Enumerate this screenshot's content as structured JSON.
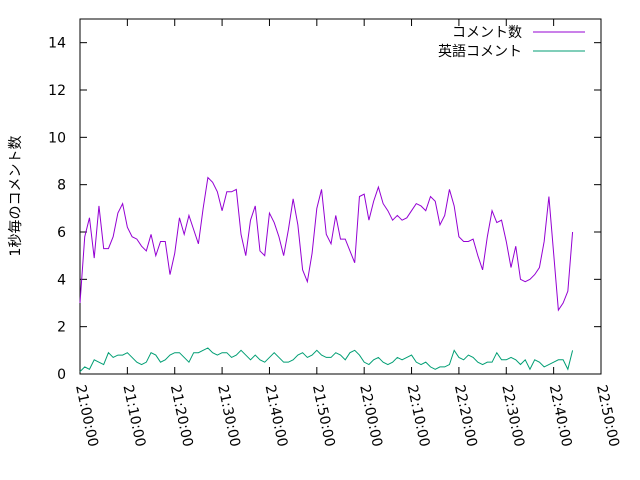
{
  "chart_data": {
    "type": "line",
    "y_label": "1秒毎のコメント数",
    "x": [
      "21:00:00",
      "21:01:00",
      "21:02:00",
      "21:03:00",
      "21:04:00",
      "21:05:00",
      "21:06:00",
      "21:07:00",
      "21:08:00",
      "21:09:00",
      "21:10:00",
      "21:11:00",
      "21:12:00",
      "21:13:00",
      "21:14:00",
      "21:15:00",
      "21:16:00",
      "21:17:00",
      "21:18:00",
      "21:19:00",
      "21:20:00",
      "21:21:00",
      "21:22:00",
      "21:23:00",
      "21:24:00",
      "21:25:00",
      "21:26:00",
      "21:27:00",
      "21:28:00",
      "21:29:00",
      "21:30:00",
      "21:31:00",
      "21:32:00",
      "21:33:00",
      "21:34:00",
      "21:35:00",
      "21:36:00",
      "21:37:00",
      "21:38:00",
      "21:39:00",
      "21:40:00",
      "21:41:00",
      "21:42:00",
      "21:43:00",
      "21:44:00",
      "21:45:00",
      "21:46:00",
      "21:47:00",
      "21:48:00",
      "21:49:00",
      "21:50:00",
      "21:51:00",
      "21:52:00",
      "21:53:00",
      "21:54:00",
      "21:55:00",
      "21:56:00",
      "21:57:00",
      "21:58:00",
      "21:59:00",
      "22:00:00",
      "22:01:00",
      "22:02:00",
      "22:03:00",
      "22:04:00",
      "22:05:00",
      "22:06:00",
      "22:07:00",
      "22:08:00",
      "22:09:00",
      "22:10:00",
      "22:11:00",
      "22:12:00",
      "22:13:00",
      "22:14:00",
      "22:15:00",
      "22:16:00",
      "22:17:00",
      "22:18:00",
      "22:19:00",
      "22:20:00",
      "22:21:00",
      "22:22:00",
      "22:23:00",
      "22:24:00",
      "22:25:00",
      "22:26:00",
      "22:27:00",
      "22:28:00",
      "22:29:00",
      "22:30:00",
      "22:31:00",
      "22:32:00",
      "22:33:00",
      "22:34:00",
      "22:35:00",
      "22:36:00",
      "22:37:00",
      "22:38:00",
      "22:39:00",
      "22:40:00",
      "22:41:00",
      "22:42:00",
      "22:43:00",
      "22:44:00"
    ],
    "series": [
      {
        "name": "コメント数",
        "color": "#9400d3",
        "values": [
          3.0,
          5.8,
          6.6,
          4.9,
          7.1,
          5.3,
          5.3,
          5.8,
          6.8,
          7.2,
          6.2,
          5.8,
          5.7,
          5.4,
          5.2,
          5.9,
          5.0,
          5.6,
          5.6,
          4.2,
          5.1,
          6.6,
          5.9,
          6.7,
          6.1,
          5.5,
          7.0,
          8.3,
          8.1,
          7.7,
          6.9,
          7.7,
          7.7,
          7.8,
          5.9,
          5.0,
          6.5,
          7.1,
          5.2,
          5.0,
          6.8,
          6.4,
          5.8,
          5.0,
          6.1,
          7.4,
          6.3,
          4.4,
          3.9,
          5.1,
          7.0,
          7.8,
          5.9,
          5.5,
          6.7,
          5.7,
          5.7,
          5.2,
          4.7,
          7.5,
          7.6,
          6.5,
          7.3,
          7.9,
          7.2,
          6.9,
          6.5,
          6.7,
          6.5,
          6.6,
          6.9,
          7.2,
          7.1,
          6.9,
          7.5,
          7.3,
          6.3,
          6.7,
          7.8,
          7.1,
          5.8,
          5.6,
          5.6,
          5.7,
          5.0,
          4.4,
          5.8,
          6.9,
          6.4,
          6.5,
          5.6,
          4.5,
          5.4,
          4.0,
          3.9,
          4.0,
          4.2,
          4.5,
          5.6,
          7.5,
          5.1,
          2.7,
          3.0,
          3.5,
          6.0
        ]
      },
      {
        "name": "英語コメント",
        "color": "#009e73",
        "values": [
          0.1,
          0.3,
          0.2,
          0.6,
          0.5,
          0.4,
          0.9,
          0.7,
          0.8,
          0.8,
          0.9,
          0.7,
          0.5,
          0.4,
          0.5,
          0.9,
          0.8,
          0.5,
          0.6,
          0.8,
          0.9,
          0.9,
          0.7,
          0.5,
          0.9,
          0.9,
          1.0,
          1.1,
          0.9,
          0.8,
          0.9,
          0.9,
          0.7,
          0.8,
          1.0,
          0.8,
          0.6,
          0.8,
          0.6,
          0.5,
          0.7,
          0.9,
          0.7,
          0.5,
          0.5,
          0.6,
          0.8,
          0.9,
          0.7,
          0.8,
          1.0,
          0.8,
          0.7,
          0.7,
          0.9,
          0.8,
          0.6,
          0.9,
          1.0,
          0.8,
          0.5,
          0.4,
          0.6,
          0.7,
          0.5,
          0.4,
          0.5,
          0.7,
          0.6,
          0.7,
          0.8,
          0.5,
          0.4,
          0.5,
          0.3,
          0.2,
          0.3,
          0.3,
          0.4,
          1.0,
          0.7,
          0.6,
          0.8,
          0.7,
          0.5,
          0.4,
          0.5,
          0.5,
          0.9,
          0.6,
          0.6,
          0.7,
          0.6,
          0.4,
          0.6,
          0.2,
          0.6,
          0.5,
          0.3,
          0.4,
          0.5,
          0.6,
          0.6,
          0.2,
          1.0
        ]
      }
    ],
    "xlim": [
      "21:00:00",
      "22:50:00"
    ],
    "xticks": [
      "21:00:00",
      "21:10:00",
      "21:20:00",
      "21:30:00",
      "21:40:00",
      "21:50:00",
      "22:00:00",
      "22:10:00",
      "22:20:00",
      "22:30:00",
      "22:40:00",
      "22:50:00"
    ],
    "ylim": [
      0,
      15
    ],
    "yticks": [
      0,
      2,
      4,
      6,
      8,
      10,
      12,
      14
    ],
    "grid": false,
    "legend": "top-right"
  }
}
